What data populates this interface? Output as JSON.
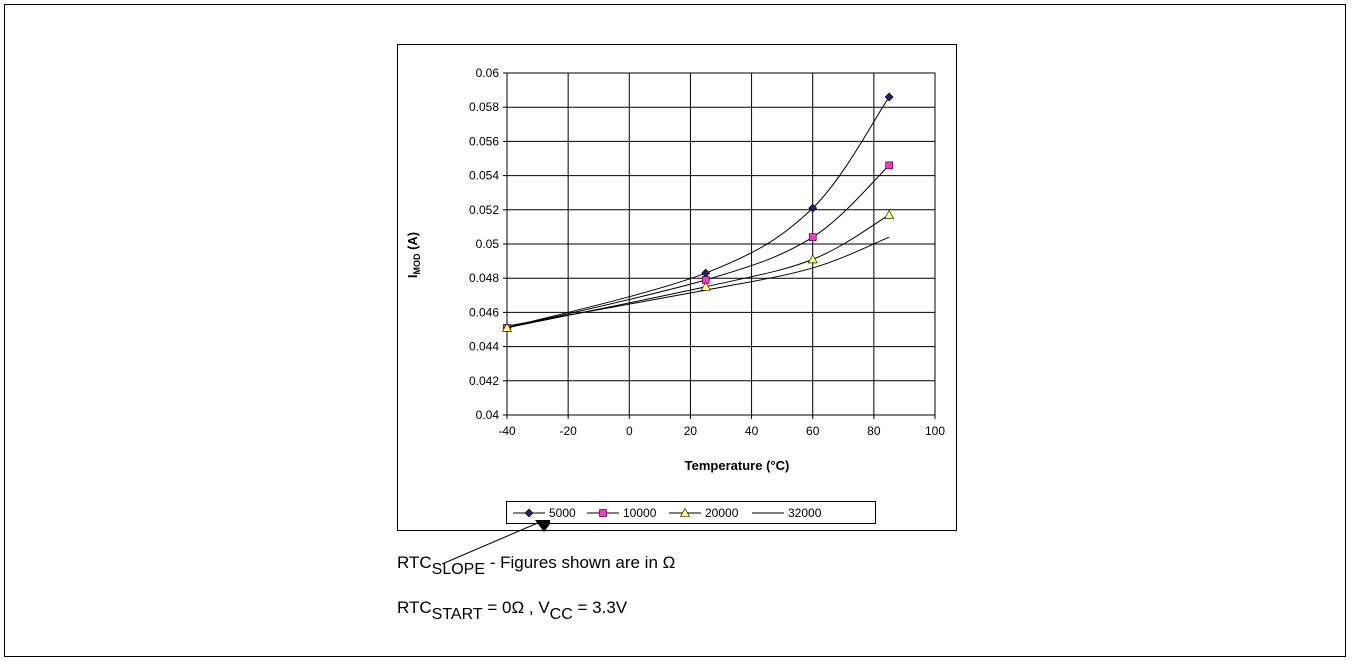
{
  "chart_data": {
    "type": "line",
    "title": "",
    "xlabel": "Temperature (°C)",
    "ylabel_main": "I",
    "ylabel_sub": "MOD",
    "ylabel_unit": " (A)",
    "xlim": [
      -40,
      100
    ],
    "ylim": [
      0.04,
      0.06
    ],
    "x_ticks": [
      "-40",
      "-20",
      "0",
      "20",
      "40",
      "60",
      "80",
      "100"
    ],
    "y_ticks": [
      "0.04",
      "0.042",
      "0.044",
      "0.046",
      "0.048",
      "0.05",
      "0.052",
      "0.054",
      "0.056",
      "0.058",
      "0.06"
    ],
    "grid": true,
    "legend_position": "bottom",
    "series": [
      {
        "name": "5000",
        "marker": "diamond",
        "marker_color": "#1f1f7a",
        "x": [
          -40,
          25,
          60,
          85
        ],
        "y": [
          0.0451,
          0.0483,
          0.0521,
          0.0586
        ]
      },
      {
        "name": "10000",
        "marker": "square",
        "marker_color": "#ff33cc",
        "x": [
          -40,
          25,
          60,
          85
        ],
        "y": [
          0.0451,
          0.0479,
          0.0504,
          0.0546
        ]
      },
      {
        "name": "20000",
        "marker": "triangle",
        "marker_color": "#ffff66",
        "x": [
          -40,
          25,
          60,
          85
        ],
        "y": [
          0.0451,
          0.0475,
          0.0491,
          0.0517
        ]
      },
      {
        "name": "32000",
        "marker": "none",
        "marker_color": "#000000",
        "x": [
          -40,
          25,
          60,
          85
        ],
        "y": [
          0.0452,
          0.0473,
          0.0486,
          0.0504
        ]
      }
    ]
  },
  "notes": {
    "line1": {
      "main": "RTC",
      "sub": "SLOPE",
      "rest": " - Figures shown are in Ω"
    },
    "line2": {
      "main": "RTC",
      "sub": "START",
      "mid": " = 0Ω , V",
      "sub2": "CC",
      "rest": " = 3.3V"
    }
  }
}
